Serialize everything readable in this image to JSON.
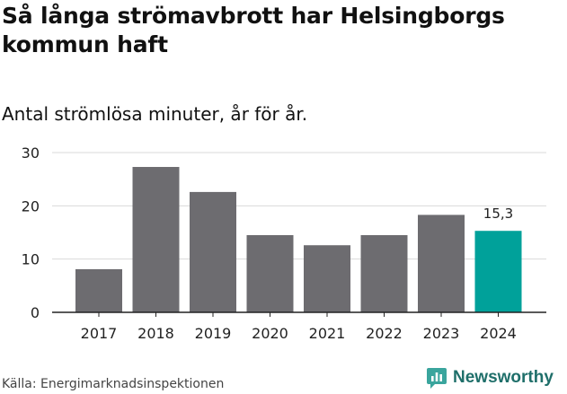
{
  "header": {
    "title": "Så långa strömavbrott har Helsingborgs kommun haft",
    "subtitle": "Antal strömlösa minuter, år för år."
  },
  "footer": {
    "source": "Källa: Energimarknadsinspektionen",
    "brand": "Newsworthy"
  },
  "colors": {
    "bar_default": "#6d6c70",
    "bar_highlight": "#00a19a",
    "grid": "#d9d9d9",
    "axis": "#222222",
    "brand": "#1f6f6a"
  },
  "chart_data": {
    "type": "bar",
    "title": "Så långa strömavbrott har Helsingborgs kommun haft",
    "subtitle": "Antal strömlösa minuter, år för år.",
    "categories": [
      "2017",
      "2018",
      "2019",
      "2020",
      "2021",
      "2022",
      "2023",
      "2024"
    ],
    "values": [
      8.1,
      27.3,
      22.6,
      14.5,
      12.6,
      14.5,
      18.3,
      15.3
    ],
    "highlight_index": 7,
    "highlight_label": "15,3",
    "ylim": [
      0,
      30
    ],
    "yticks": [
      "0",
      "10",
      "20",
      "30"
    ],
    "xlabel": "",
    "ylabel": "",
    "grid": true
  }
}
